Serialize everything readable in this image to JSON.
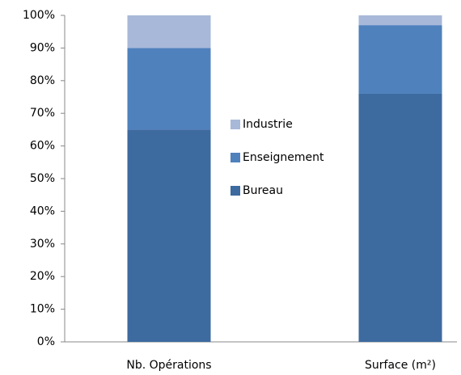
{
  "chart_data": {
    "type": "stacked_bar",
    "categories": [
      "Nb. Opérations",
      "Surface (m²)"
    ],
    "series": [
      {
        "name": "Bureau",
        "color": "#3d6a9f",
        "values": [
          65,
          76
        ]
      },
      {
        "name": "Enseignement",
        "color": "#4f81bd",
        "values": [
          25,
          21
        ]
      },
      {
        "name": "Industrie",
        "color": "#a8b8d8",
        "values": [
          10,
          3
        ]
      }
    ],
    "ylim": [
      0,
      100
    ],
    "yticks": [
      {
        "value": 0,
        "label": "0%"
      },
      {
        "value": 10,
        "label": "10%"
      },
      {
        "value": 20,
        "label": "20%"
      },
      {
        "value": 30,
        "label": "30%"
      },
      {
        "value": 40,
        "label": "40%"
      },
      {
        "value": 50,
        "label": "50%"
      },
      {
        "value": 60,
        "label": "60%"
      },
      {
        "value": 70,
        "label": "70%"
      },
      {
        "value": 80,
        "label": "80%"
      },
      {
        "value": 90,
        "label": "90%"
      },
      {
        "value": 100,
        "label": "100%"
      }
    ],
    "legend": "center"
  }
}
